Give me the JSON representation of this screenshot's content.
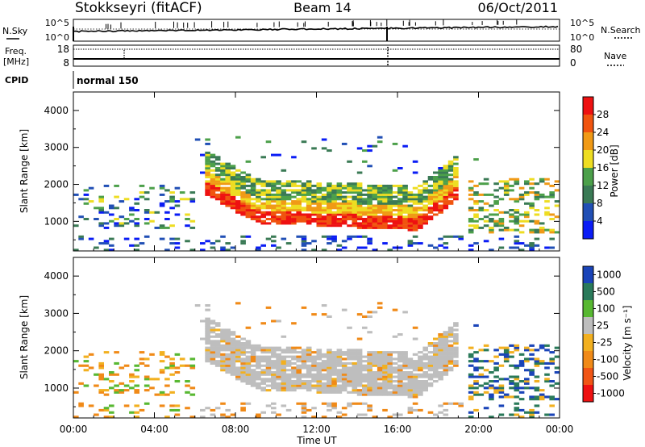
{
  "header": {
    "station": "Stokkseyri (fitACF)",
    "beam": "Beam 14",
    "date": "06/Oct/2011"
  },
  "panels": {
    "nsky": {
      "left_label": "N.Sky",
      "left_ticks": [
        "10^5",
        "10^0"
      ],
      "right_ticks": [
        "10^5",
        "10^0"
      ],
      "right_label": "N.Search"
    },
    "freq": {
      "left_label_1": "Freq.",
      "left_label_2": "[MHz]",
      "left_ticks": [
        "18",
        "8"
      ],
      "right_ticks": [
        "80",
        "0"
      ],
      "right_label": "Nave"
    },
    "cpid": {
      "left_label": "CPID",
      "value": "normal 150"
    }
  },
  "colors": {
    "power": [
      "#0a1cf5",
      "#214fb5",
      "#3a7a55",
      "#4ca04a",
      "#eedd22",
      "#f09a16",
      "#f0540f",
      "#ee1111"
    ],
    "velocity": [
      "#ee1111",
      "#f05515",
      "#f08a18",
      "#f2b020",
      "#bebebe",
      "#58b832",
      "#2a7a5a",
      "#1a44b8"
    ]
  },
  "chart_data": [
    {
      "type": "heatmap",
      "name": "power",
      "xlabel": "",
      "ylabel": "Slant Range [km]",
      "x_ticks": [
        "00:00",
        "04:00",
        "08:00",
        "12:00",
        "16:00",
        "20:00",
        "00:00"
      ],
      "y_ticks": [
        "1000",
        "2000",
        "3000",
        "4000"
      ],
      "xlim": [
        0,
        24
      ],
      "ylim": [
        200,
        4500
      ],
      "colorbar": {
        "label": "Power [dB]",
        "ticks": [
          "4",
          "8",
          "12",
          "16",
          "20",
          "24",
          "28"
        ],
        "range": [
          0,
          32
        ]
      }
    },
    {
      "type": "heatmap",
      "name": "velocity",
      "xlabel": "Time UT",
      "ylabel": "Slant Range [km]",
      "x_ticks": [
        "00:00",
        "04:00",
        "08:00",
        "12:00",
        "16:00",
        "20:00",
        "00:00"
      ],
      "y_ticks": [
        "1000",
        "2000",
        "3000",
        "4000"
      ],
      "xlim": [
        0,
        24
      ],
      "ylim": [
        200,
        4500
      ],
      "colorbar": {
        "label": "Velocity [m s⁻¹]",
        "ticks": [
          "1000",
          "500",
          "100",
          "25",
          "-25",
          "-100",
          "-500",
          "-1000"
        ]
      }
    }
  ]
}
